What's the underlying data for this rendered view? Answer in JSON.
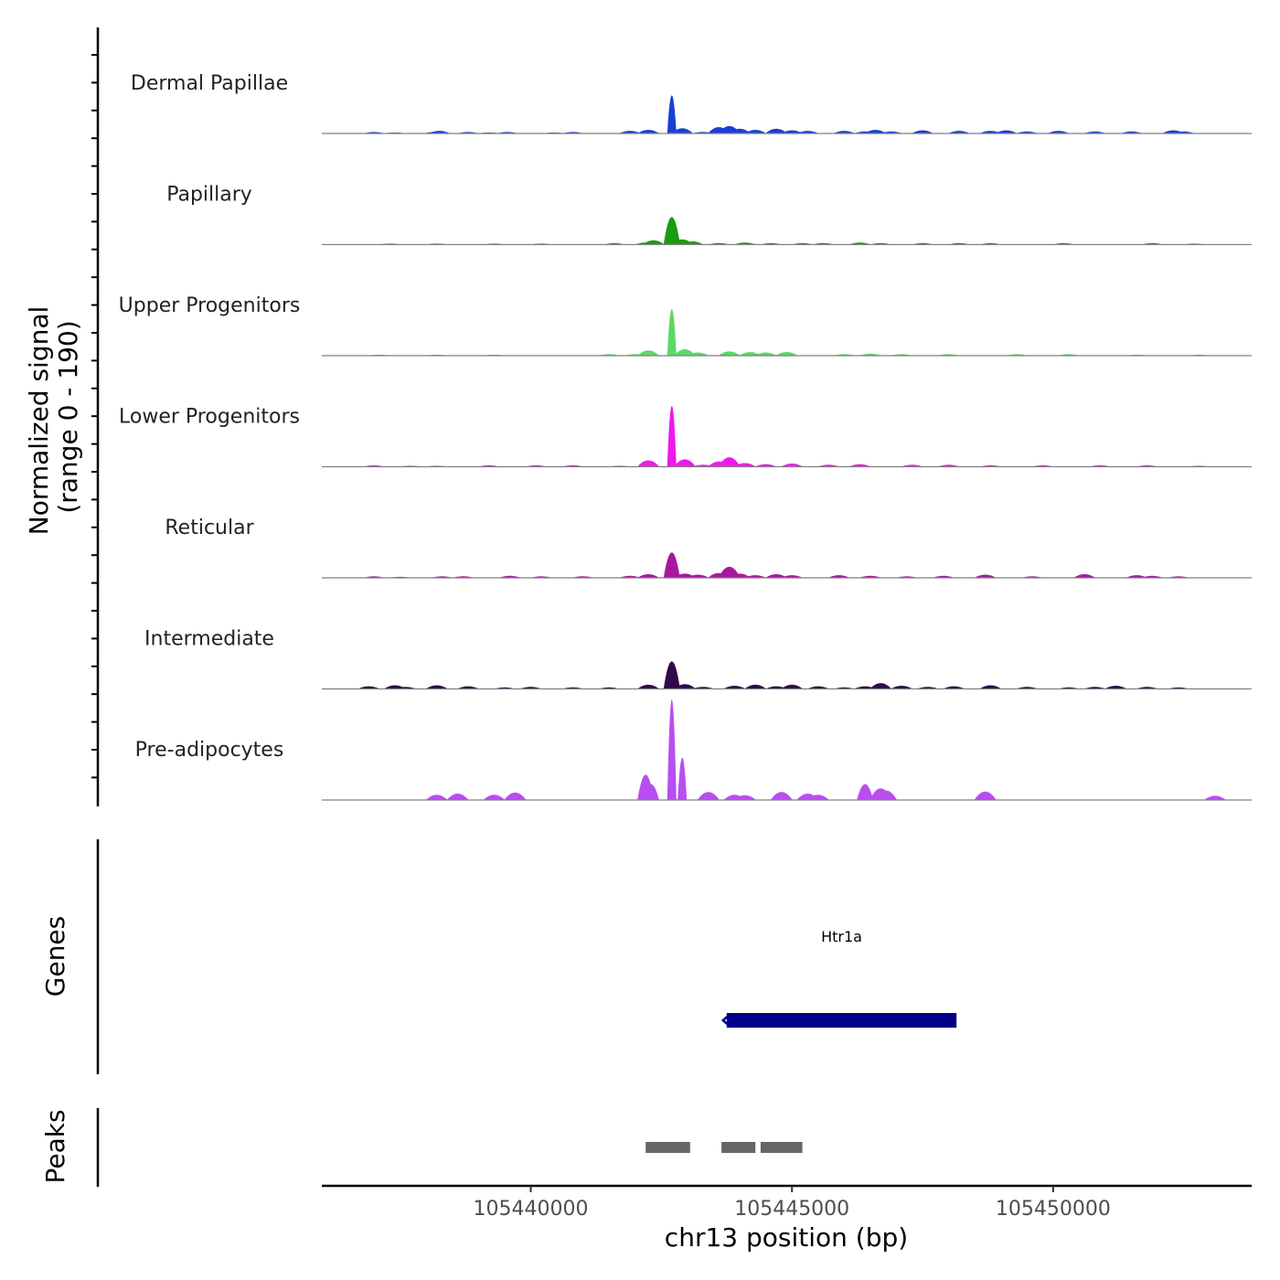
{
  "chart_data": {
    "type": "area",
    "chromosome": "chr13",
    "xlabel": "chr13 position (bp)",
    "xlim": [
      105436000,
      105453800
    ],
    "x_ticks": [
      105440000,
      105445000,
      105450000
    ],
    "x_tick_labels": [
      "105440000",
      "105445000",
      "105450000"
    ],
    "signal_axis": {
      "title_line1": "Normalized signal",
      "title_line2": "(range 0 - 190)",
      "range": [
        0,
        190
      ]
    },
    "genes_title": "Genes",
    "peaks_title": "Peaks",
    "tracks": [
      {
        "name": "Dermal Papillae",
        "color": "#1a3fd6",
        "profile": [
          [
            105437000,
            3
          ],
          [
            105437400,
            2
          ],
          [
            105438150,
            3
          ],
          [
            105438250,
            5
          ],
          [
            105438800,
            3
          ],
          [
            105439200,
            2
          ],
          [
            105439550,
            3
          ],
          [
            105440450,
            2
          ],
          [
            105440800,
            3
          ],
          [
            105441900,
            5
          ],
          [
            105442250,
            7
          ],
          [
            105442700,
            72
          ],
          [
            105442900,
            10
          ],
          [
            105443300,
            3
          ],
          [
            105443600,
            12
          ],
          [
            105443800,
            14
          ],
          [
            105444000,
            9
          ],
          [
            105444300,
            7
          ],
          [
            105444700,
            9
          ],
          [
            105445000,
            6
          ],
          [
            105445300,
            5
          ],
          [
            105446000,
            5
          ],
          [
            105446400,
            4
          ],
          [
            105446600,
            7
          ],
          [
            105446900,
            4
          ],
          [
            105447500,
            6
          ],
          [
            105448200,
            5
          ],
          [
            105448800,
            5
          ],
          [
            105449100,
            6
          ],
          [
            105449500,
            4
          ],
          [
            105450100,
            5
          ],
          [
            105450800,
            4
          ],
          [
            105451500,
            4
          ],
          [
            105452300,
            6
          ],
          [
            105452500,
            4
          ]
        ]
      },
      {
        "name": "Papillary",
        "color": "#1a9c0f",
        "profile": [
          [
            105437300,
            2
          ],
          [
            105438200,
            2
          ],
          [
            105439300,
            2
          ],
          [
            105440200,
            2
          ],
          [
            105441600,
            3
          ],
          [
            105442200,
            4
          ],
          [
            105442350,
            8
          ],
          [
            105442700,
            52
          ],
          [
            105442900,
            10
          ],
          [
            105443100,
            6
          ],
          [
            105443600,
            3
          ],
          [
            105444100,
            4
          ],
          [
            105444600,
            3
          ],
          [
            105445200,
            3
          ],
          [
            105445600,
            3
          ],
          [
            105446300,
            4
          ],
          [
            105446700,
            3
          ],
          [
            105447500,
            3
          ],
          [
            105448200,
            3
          ],
          [
            105448800,
            3
          ],
          [
            105450200,
            3
          ],
          [
            105451900,
            3
          ],
          [
            105452700,
            2
          ]
        ]
      },
      {
        "name": "Upper Progenitors",
        "color": "#5bd966",
        "profile": [
          [
            105437100,
            2
          ],
          [
            105438200,
            2
          ],
          [
            105439300,
            2
          ],
          [
            105441500,
            3
          ],
          [
            105442000,
            3
          ],
          [
            105442250,
            10
          ],
          [
            105442700,
            88
          ],
          [
            105442950,
            12
          ],
          [
            105443200,
            6
          ],
          [
            105443800,
            8
          ],
          [
            105444200,
            7
          ],
          [
            105444500,
            6
          ],
          [
            105444900,
            7
          ],
          [
            105446000,
            3
          ],
          [
            105446500,
            4
          ],
          [
            105447100,
            3
          ],
          [
            105448000,
            3
          ],
          [
            105449300,
            3
          ],
          [
            105450300,
            3
          ],
          [
            105451600,
            2
          ],
          [
            105452800,
            2
          ]
        ]
      },
      {
        "name": "Lower Progenitors",
        "color": "#ee18ee",
        "profile": [
          [
            105437000,
            3
          ],
          [
            105437700,
            2
          ],
          [
            105438200,
            2
          ],
          [
            105439200,
            3
          ],
          [
            105440100,
            3
          ],
          [
            105440800,
            3
          ],
          [
            105441700,
            2
          ],
          [
            105442250,
            12
          ],
          [
            105442700,
            115
          ],
          [
            105442950,
            14
          ],
          [
            105443300,
            4
          ],
          [
            105443600,
            10
          ],
          [
            105443800,
            18
          ],
          [
            105444100,
            7
          ],
          [
            105444500,
            5
          ],
          [
            105445000,
            6
          ],
          [
            105445700,
            4
          ],
          [
            105446300,
            5
          ],
          [
            105447300,
            4
          ],
          [
            105448000,
            4
          ],
          [
            105448800,
            3
          ],
          [
            105449800,
            3
          ],
          [
            105450900,
            3
          ],
          [
            105451800,
            3
          ],
          [
            105452800,
            2
          ]
        ]
      },
      {
        "name": "Reticular",
        "color": "#a8189e",
        "profile": [
          [
            105437000,
            3
          ],
          [
            105437500,
            2
          ],
          [
            105438300,
            3
          ],
          [
            105438700,
            3
          ],
          [
            105439600,
            4
          ],
          [
            105440200,
            3
          ],
          [
            105441000,
            3
          ],
          [
            105441900,
            4
          ],
          [
            105442250,
            7
          ],
          [
            105442700,
            48
          ],
          [
            105442950,
            8
          ],
          [
            105443200,
            6
          ],
          [
            105443600,
            9
          ],
          [
            105443800,
            21
          ],
          [
            105444000,
            8
          ],
          [
            105444300,
            5
          ],
          [
            105444700,
            7
          ],
          [
            105445000,
            5
          ],
          [
            105445900,
            5
          ],
          [
            105446500,
            4
          ],
          [
            105447200,
            3
          ],
          [
            105447900,
            4
          ],
          [
            105448700,
            6
          ],
          [
            105449600,
            3
          ],
          [
            105450600,
            7
          ],
          [
            105451600,
            5
          ],
          [
            105451900,
            4
          ],
          [
            105452400,
            3
          ]
        ]
      },
      {
        "name": "Intermediate",
        "color": "#2e0a4a",
        "profile": [
          [
            105436900,
            5
          ],
          [
            105437400,
            7
          ],
          [
            105437600,
            4
          ],
          [
            105438200,
            7
          ],
          [
            105438800,
            5
          ],
          [
            105439500,
            3
          ],
          [
            105440000,
            4
          ],
          [
            105440800,
            3
          ],
          [
            105441500,
            3
          ],
          [
            105442250,
            8
          ],
          [
            105442700,
            52
          ],
          [
            105442950,
            9
          ],
          [
            105443300,
            4
          ],
          [
            105443900,
            6
          ],
          [
            105444300,
            8
          ],
          [
            105444700,
            5
          ],
          [
            105445000,
            8
          ],
          [
            105445500,
            5
          ],
          [
            105446000,
            3
          ],
          [
            105446400,
            5
          ],
          [
            105446700,
            11
          ],
          [
            105447100,
            6
          ],
          [
            105447600,
            4
          ],
          [
            105448100,
            5
          ],
          [
            105448800,
            7
          ],
          [
            105449500,
            4
          ],
          [
            105450300,
            3
          ],
          [
            105450800,
            4
          ],
          [
            105451200,
            6
          ],
          [
            105451800,
            4
          ],
          [
            105452400,
            3
          ]
        ]
      },
      {
        "name": "Pre-adipocytes",
        "color": "#b84ef0",
        "profile": [
          [
            105438200,
            10
          ],
          [
            105438600,
            12
          ],
          [
            105439300,
            10
          ],
          [
            105439700,
            14
          ],
          [
            105442200,
            48
          ],
          [
            105442300,
            30
          ],
          [
            105442700,
            190
          ],
          [
            105442900,
            80
          ],
          [
            105443400,
            15
          ],
          [
            105443900,
            10
          ],
          [
            105444100,
            9
          ],
          [
            105444800,
            15
          ],
          [
            105445300,
            12
          ],
          [
            105445500,
            10
          ],
          [
            105446400,
            30
          ],
          [
            105446700,
            22
          ],
          [
            105446800,
            18
          ],
          [
            105448700,
            16
          ],
          [
            105453100,
            8
          ]
        ]
      }
    ],
    "genes": [
      {
        "name": "Htr1a",
        "start": 105443750,
        "end": 105448150,
        "strand": "-",
        "color": "#00008b"
      }
    ],
    "peaks": [
      {
        "start": 105442200,
        "end": 105443050
      },
      {
        "start": 105443650,
        "end": 105444300
      },
      {
        "start": 105444400,
        "end": 105445200
      }
    ],
    "peak_color": "#666666",
    "baseline_color": "#808080"
  }
}
